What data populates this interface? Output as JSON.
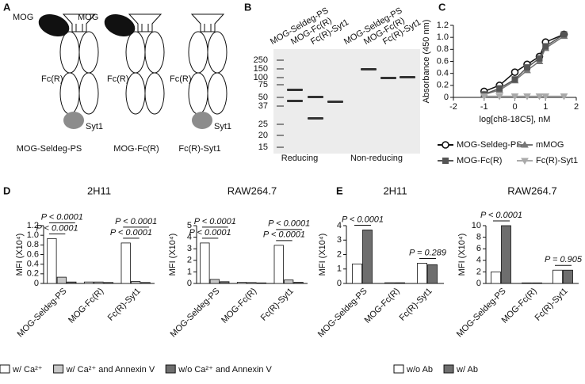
{
  "panel_a": {
    "label": "A",
    "constructs": [
      {
        "top": "MOG",
        "middle": "Fc(R)",
        "bottom": "Syt1",
        "name": "MOG-Seldeg-PS"
      },
      {
        "top": "MOG",
        "middle": "Fc(R)",
        "name": "MOG-Fc(R)"
      },
      {
        "middle": "Fc(R)",
        "bottom": "Syt1",
        "name": "Fc(R)-Syt1"
      }
    ]
  },
  "panel_b": {
    "label": "B",
    "lanes": [
      "MOG-Seldeg-PS",
      "MOG-Fc(R)",
      "Fc(R)-Syt1",
      "MOG-Seldeg-PS",
      "MOG-Fc(R)",
      "Fc(R)-Syt1"
    ],
    "ladder": [
      250,
      150,
      100,
      75,
      50,
      37,
      25,
      20,
      15
    ],
    "groups": [
      "Reducing",
      "Non-reducing"
    ]
  },
  "chart_data": [
    {
      "type": "line",
      "panel": "C",
      "xlabel": "log[ch8-18C5], nM",
      "ylabel": "Absorbance (450 nm)",
      "x": [
        -1,
        -0.5,
        0,
        0.4,
        0.8,
        1.0,
        1.6
      ],
      "xlim": [
        -2,
        2
      ],
      "xticks": [
        -2,
        -1,
        0,
        1,
        2
      ],
      "ylim": [
        0,
        1.2
      ],
      "yticks": [
        0,
        0.2,
        0.4,
        0.6,
        0.8,
        {
          "value": 1,
          "label": "1.0"
        },
        1.2
      ],
      "series": [
        {
          "name": "MOG-Seldeg-PS",
          "color": "#111111",
          "marker": "circle",
          "values": [
            0.1,
            0.2,
            0.42,
            0.55,
            0.68,
            0.92,
            1.05
          ]
        },
        {
          "name": "mMOG",
          "color": "#777777",
          "marker": "triangle",
          "values": [
            0.05,
            0.12,
            0.28,
            0.45,
            0.6,
            0.82,
            1.02
          ]
        },
        {
          "name": "MOG-Fc(R)",
          "color": "#555555",
          "marker": "square",
          "values": [
            0.05,
            0.15,
            0.3,
            0.5,
            0.65,
            0.85,
            1.05
          ]
        },
        {
          "name": "Fc(R)-Syt1",
          "color": "#aaaaaa",
          "marker": "triangle-down",
          "values": [
            0.02,
            0.02,
            0.02,
            0.02,
            0.02,
            0.02,
            0.02
          ]
        }
      ]
    },
    {
      "type": "bar",
      "panel": "D",
      "title": "2H11",
      "ylabel": "MFI (X10⁴)",
      "categories": [
        "MOG-Seldeg-PS",
        "MOG-Fc(R)",
        "Fc(R)-Syt1"
      ],
      "ylim": [
        0,
        1.2
      ],
      "yticks": [
        0,
        0.2,
        0.4,
        0.6,
        0.8,
        {
          "value": 1,
          "label": "1.0"
        },
        1.2
      ],
      "series": [
        {
          "name": "w/ Ca²⁺",
          "color": "#ffffff",
          "values": [
            0.93,
            0.03,
            0.84
          ]
        },
        {
          "name": "w/ Ca²⁺ and Annexin V",
          "color": "#c8c8c8",
          "values": [
            0.13,
            0.03,
            0.04
          ]
        },
        {
          "name": "w/o Ca²⁺ and Annexin V",
          "color": "#6e6e6e",
          "values": [
            0.03,
            0.02,
            0.02
          ]
        }
      ],
      "significance": [
        [
          "P < 0.0001",
          "P < 0.0001"
        ],
        null,
        [
          "P < 0.0001",
          "P < 0.0001"
        ]
      ]
    },
    {
      "type": "bar",
      "title": "RAW264.7",
      "ylabel": "MFI (X10⁴)",
      "categories": [
        "MOG-Seldeg-PS",
        "MOG-Fc(R)",
        "Fc(R)-Syt1"
      ],
      "ylim": [
        0,
        5
      ],
      "yticks": [
        0,
        1,
        2,
        3,
        4,
        5
      ],
      "series": [
        {
          "color": "#ffffff",
          "values": [
            3.5,
            0.1,
            3.3
          ]
        },
        {
          "color": "#c8c8c8",
          "values": [
            0.35,
            0.08,
            0.3
          ]
        },
        {
          "color": "#6e6e6e",
          "values": [
            0.15,
            0.05,
            0.1
          ]
        }
      ],
      "significance": [
        [
          "P < 0.0001",
          "P < 0.0001"
        ],
        null,
        [
          "P < 0.0001",
          "P < 0.0001"
        ]
      ]
    },
    {
      "type": "bar",
      "panel": "E",
      "title": "2H11",
      "ylabel": "MFI (X10⁴)",
      "categories": [
        "MOG-Seldeg-PS",
        "MOG-Fc(R)",
        "Fc(R)-Syt1"
      ],
      "ylim": [
        0,
        4
      ],
      "yticks": [
        0,
        1,
        2,
        3,
        4
      ],
      "series": [
        {
          "name": "w/o Ab",
          "color": "#ffffff",
          "values": [
            1.35,
            0.05,
            1.4
          ]
        },
        {
          "name": "w/ Ab",
          "color": "#6e6e6e",
          "values": [
            3.7,
            0.05,
            1.3
          ]
        }
      ],
      "significance": [
        [
          "P < 0.0001"
        ],
        null,
        [
          "P = 0.289"
        ]
      ]
    },
    {
      "type": "bar",
      "title": "RAW264.7",
      "ylabel": "MFI (X10⁴)",
      "categories": [
        "MOG-Seldeg-PS",
        "MOG-Fc(R)",
        "Fc(R)-Syt1"
      ],
      "ylim": [
        0,
        10
      ],
      "yticks": [
        0,
        2,
        4,
        6,
        8,
        10
      ],
      "series": [
        {
          "color": "#ffffff",
          "values": [
            2.0,
            0.1,
            2.3
          ]
        },
        {
          "color": "#6e6e6e",
          "values": [
            10,
            0.1,
            2.3
          ]
        }
      ],
      "significance": [
        [
          "P < 0.0001"
        ],
        null,
        [
          "P = 0.905"
        ]
      ]
    }
  ]
}
